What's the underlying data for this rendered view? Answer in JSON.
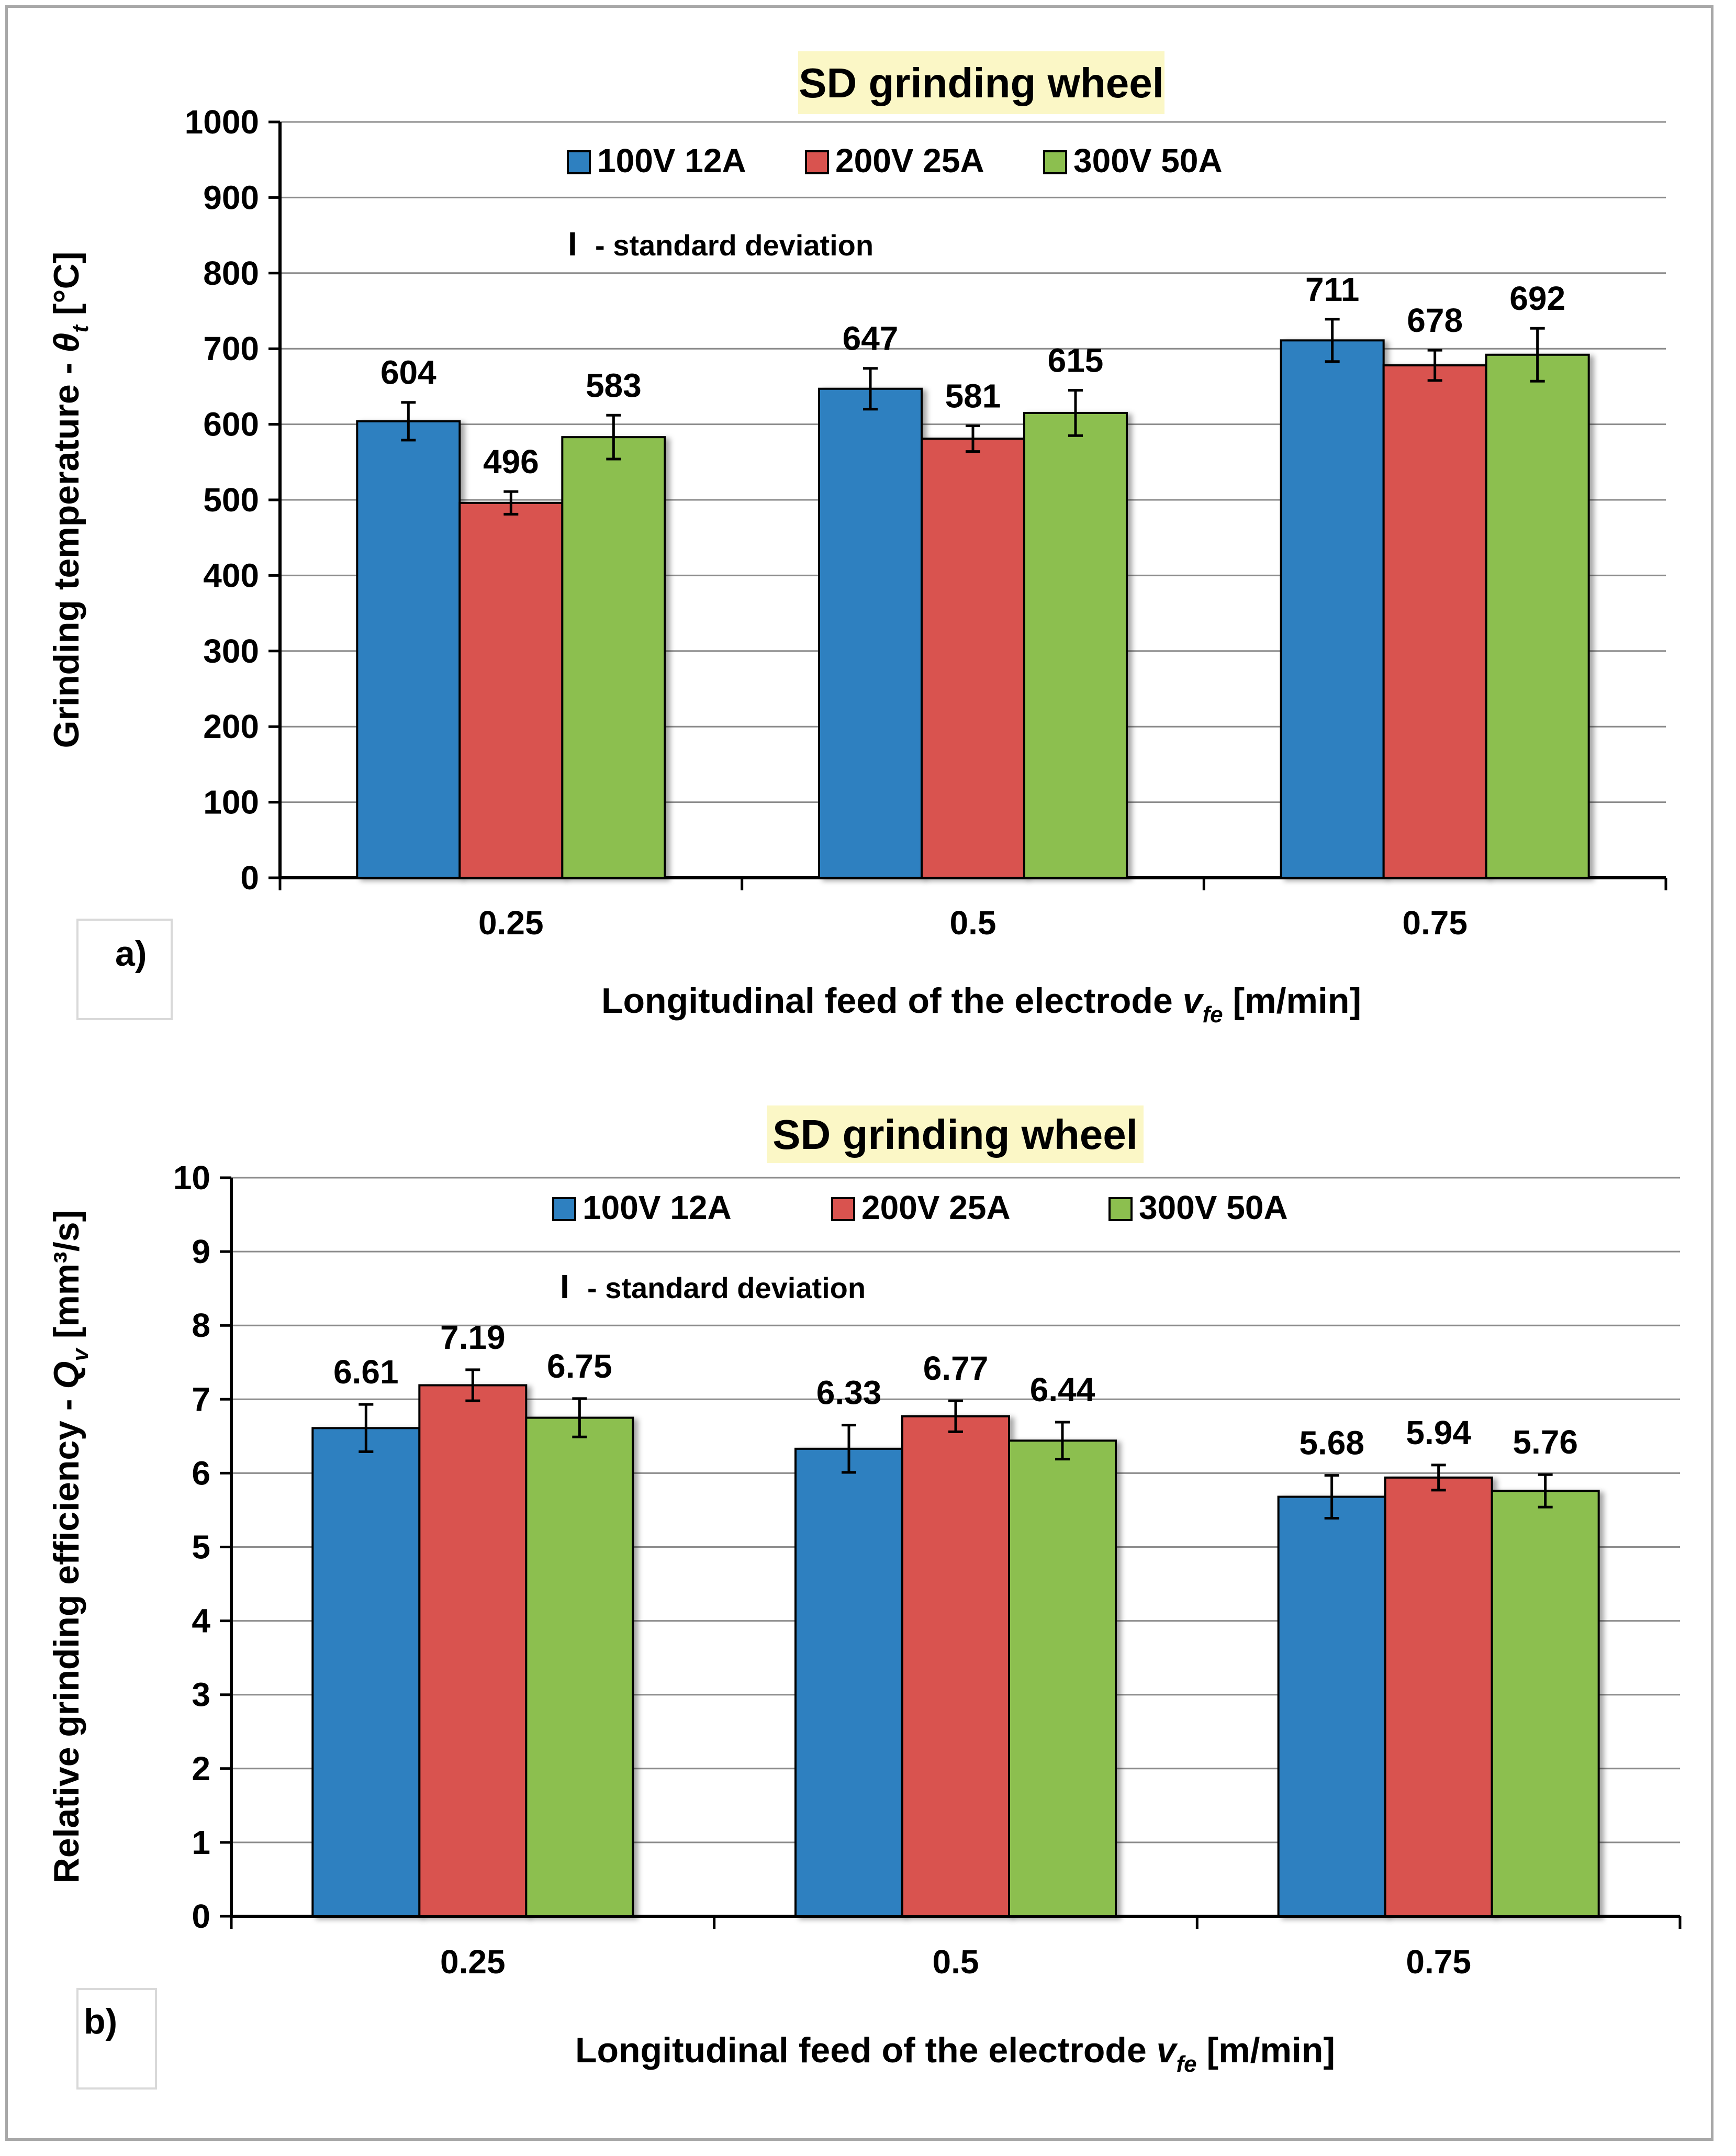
{
  "chart_data": [
    {
      "type": "bar",
      "panel_label": "a)",
      "title": "SD grinding wheel",
      "categories": [
        "0.25",
        "0.5",
        "0.75"
      ],
      "series": [
        {
          "name": "100V 12A",
          "color": "#2e80c0",
          "values": [
            604,
            647,
            711
          ],
          "std": [
            25,
            27,
            28
          ]
        },
        {
          "name": "200V 25A",
          "color": "#d9534f",
          "values": [
            496,
            581,
            678
          ],
          "std": [
            15,
            17,
            20
          ]
        },
        {
          "name": "300V 50A",
          "color": "#8cbf4f",
          "values": [
            583,
            615,
            692
          ],
          "std": [
            29,
            30,
            35
          ]
        }
      ],
      "ylim": [
        0,
        1000
      ],
      "yticks": [
        "0",
        "100",
        "200",
        "300",
        "400",
        "500",
        "600",
        "700",
        "800",
        "900",
        "1000"
      ],
      "data_labels": [
        [
          "604",
          "647",
          "711"
        ],
        [
          "496",
          "581",
          "678"
        ],
        [
          "583",
          "615",
          "692"
        ]
      ],
      "ylabel": {
        "main": "Grinding temperature - ",
        "symbol": "θ",
        "subscript": "t",
        "unit": " [°C]"
      },
      "xlabel": {
        "main": "Longitudinal feed of the electrode ",
        "symbol": "v",
        "subscript": "fe",
        "unit": " [m/min]"
      },
      "sd_note": "- standard deviation",
      "sd_symbol": "I",
      "grid": true,
      "legend_position": "top-center"
    },
    {
      "type": "bar",
      "panel_label": "b)",
      "title": "SD grinding wheel",
      "categories": [
        "0.25",
        "0.5",
        "0.75"
      ],
      "series": [
        {
          "name": "100V 12A",
          "color": "#2e80c0",
          "values": [
            6.61,
            6.33,
            5.68
          ],
          "std": [
            0.32,
            0.32,
            0.29
          ]
        },
        {
          "name": "200V 25A",
          "color": "#d9534f",
          "values": [
            7.19,
            6.77,
            5.94
          ],
          "std": [
            0.21,
            0.21,
            0.17
          ]
        },
        {
          "name": "300V 50A",
          "color": "#8cbf4f",
          "values": [
            6.75,
            6.44,
            5.76
          ],
          "std": [
            0.26,
            0.25,
            0.22
          ]
        }
      ],
      "ylim": [
        0,
        10
      ],
      "yticks": [
        "0",
        "1",
        "2",
        "3",
        "4",
        "5",
        "6",
        "7",
        "8",
        "9",
        "10"
      ],
      "data_labels": [
        [
          "6.61",
          "6.33",
          "5.68"
        ],
        [
          "7.19",
          "6.77",
          "5.94"
        ],
        [
          "6.75",
          "6.44",
          "5.76"
        ]
      ],
      "ylabel": {
        "main": "Relative grinding efficiency - ",
        "symbol": "Q",
        "subscript": "v",
        "unit": " [mm³/s]"
      },
      "xlabel": {
        "main": "Longitudinal feed of the electrode ",
        "symbol": "v",
        "subscript": "fe",
        "unit": " [m/min]"
      },
      "sd_note": "- standard deviation",
      "sd_symbol": "I",
      "grid": true,
      "legend_position": "top-center"
    }
  ]
}
